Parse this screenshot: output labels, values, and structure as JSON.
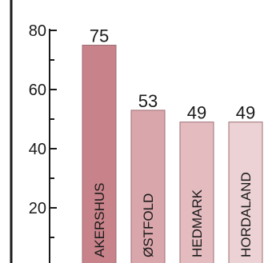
{
  "chart_data": {
    "type": "bar",
    "categories": [
      "AKERSHUS",
      "ØSTFOLD",
      "HEDMARK",
      "HORDALAND"
    ],
    "values": [
      75,
      53,
      49,
      49
    ],
    "title": "",
    "xlabel": "",
    "ylabel": "",
    "ylim": [
      0,
      80
    ],
    "y_ticks": [
      20,
      40,
      60,
      80
    ],
    "y_tick_labels": [
      "20",
      "40",
      "60",
      "80"
    ],
    "grid": false,
    "legend": "none",
    "bar_colors": [
      "#c8828a",
      "#d9a6ab",
      "#e4bcc0",
      "#ecd2d4"
    ],
    "bar_edge_color": "#9e6e74",
    "axis_color": "#1a1a1a"
  }
}
